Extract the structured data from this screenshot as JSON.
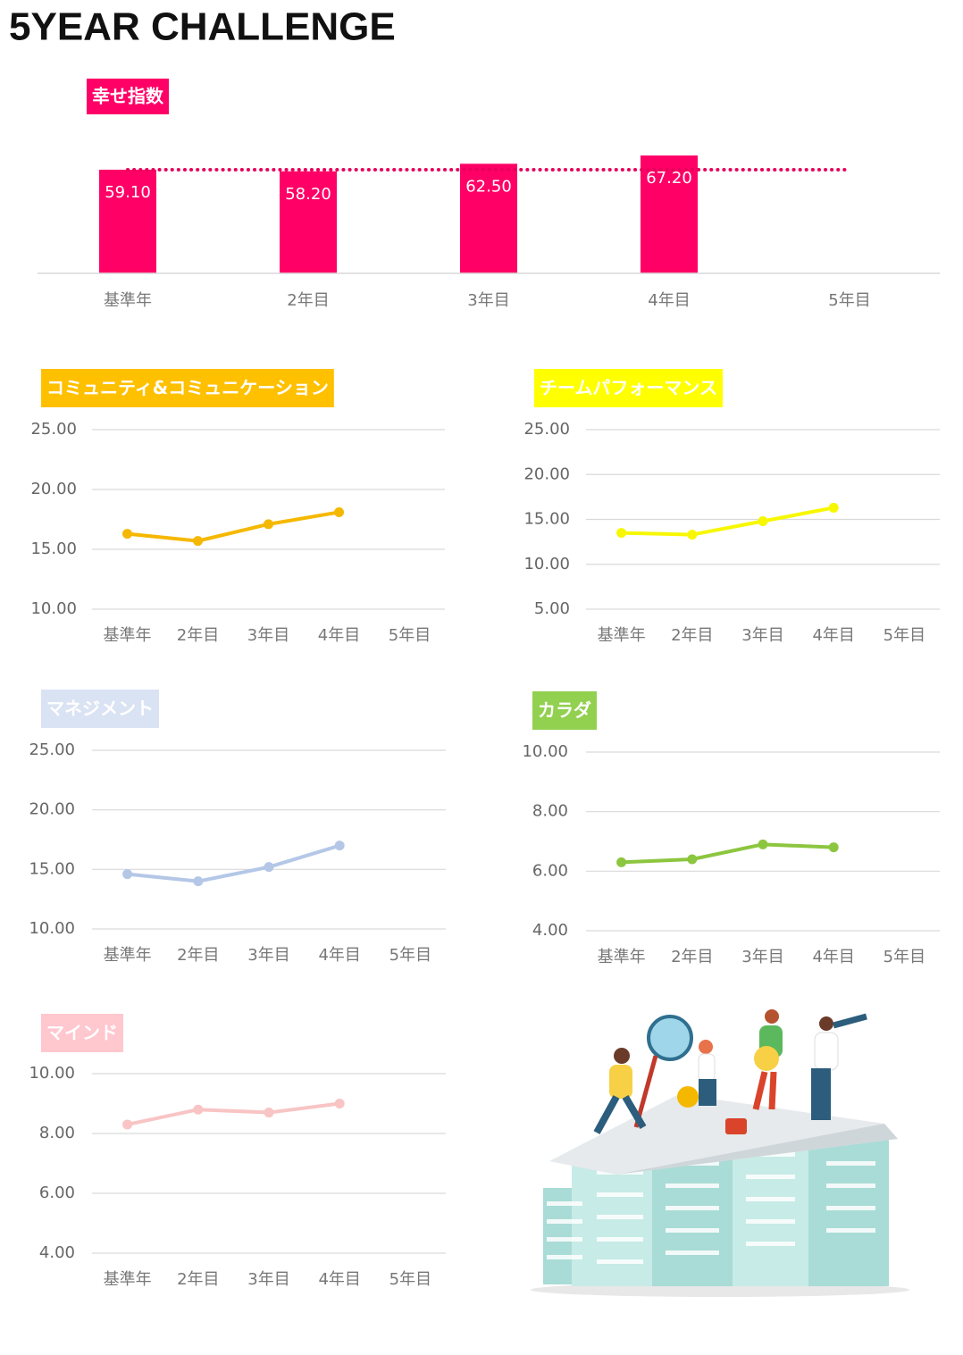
{
  "title": "5YEAR CHALLENGE",
  "chart_data": [
    {
      "type": "bar",
      "title": "幸せ指数",
      "title_background": "#ff0066",
      "categories": [
        "基準年",
        "2年目",
        "3年目",
        "4年目",
        "5年目"
      ],
      "values": [
        59.1,
        58.2,
        62.5,
        67.2,
        null
      ],
      "value_labels": [
        "59.10",
        "58.20",
        "62.50",
        "67.20",
        null
      ],
      "color": "#ff0066",
      "ylim": [
        0,
        80
      ],
      "reference_line": {
        "value": 59.1,
        "color": "#e6005c",
        "style": "dotted"
      }
    },
    {
      "type": "line",
      "title": "コミュニティ&コミュニケーション",
      "title_background": "#ffc000",
      "categories": [
        "基準年",
        "2年目",
        "3年目",
        "4年目",
        "5年目"
      ],
      "values": [
        16.3,
        15.7,
        17.1,
        18.1,
        null
      ],
      "color": "#f5b800",
      "ylim": [
        10,
        25
      ],
      "grid": true,
      "yticks": [
        {
          "value": 10,
          "label": "10.00"
        },
        {
          "value": 15,
          "label": "15.00"
        },
        {
          "value": 20,
          "label": "20.00"
        },
        {
          "value": 25,
          "label": "25.00"
        }
      ]
    },
    {
      "type": "line",
      "title": "チームパフォーマンス",
      "title_background": "#ffff00",
      "categories": [
        "基準年",
        "2年目",
        "3年目",
        "4年目",
        "5年目"
      ],
      "values": [
        13.5,
        13.3,
        14.8,
        16.3,
        null
      ],
      "color": "#f7f700",
      "ylim": [
        5,
        25
      ],
      "grid": true,
      "yticks": [
        {
          "value": 5,
          "label": "5.00"
        },
        {
          "value": 10,
          "label": "10.00"
        },
        {
          "value": 15,
          "label": "15.00"
        },
        {
          "value": 20,
          "label": "20.00"
        },
        {
          "value": 25,
          "label": "25.00"
        }
      ]
    },
    {
      "type": "line",
      "title": "マネジメント",
      "title_background": "#dae3f3",
      "categories": [
        "基準年",
        "2年目",
        "3年目",
        "4年目",
        "5年目"
      ],
      "values": [
        14.6,
        14.0,
        15.2,
        17.0,
        null
      ],
      "color": "#b4c7e7",
      "ylim": [
        10,
        25
      ],
      "grid": true,
      "yticks": [
        {
          "value": 10,
          "label": "10.00"
        },
        {
          "value": 15,
          "label": "15.00"
        },
        {
          "value": 20,
          "label": "20.00"
        },
        {
          "value": 25,
          "label": "25.00"
        }
      ]
    },
    {
      "type": "line",
      "title": "カラダ",
      "title_background": "#92d050",
      "categories": [
        "基準年",
        "2年目",
        "3年目",
        "4年目",
        "5年目"
      ],
      "values": [
        6.3,
        6.4,
        6.9,
        6.8,
        null
      ],
      "color": "#8cc63f",
      "ylim": [
        4,
        10
      ],
      "grid": true,
      "yticks": [
        {
          "value": 4,
          "label": "4.00"
        },
        {
          "value": 6,
          "label": "6.00"
        },
        {
          "value": 8,
          "label": "8.00"
        },
        {
          "value": 10,
          "label": "10.00"
        }
      ]
    },
    {
      "type": "line",
      "title": "マインド",
      "title_background": "#ffc7ce",
      "categories": [
        "基準年",
        "2年目",
        "3年目",
        "4年目",
        "5年目"
      ],
      "values": [
        8.3,
        8.8,
        8.7,
        9.0,
        null
      ],
      "color": "#f8c4c4",
      "ylim": [
        4,
        10
      ],
      "grid": true,
      "yticks": [
        {
          "value": 4,
          "label": "4.00"
        },
        {
          "value": 6,
          "label": "6.00"
        },
        {
          "value": 8,
          "label": "8.00"
        },
        {
          "value": 10,
          "label": "10.00"
        }
      ]
    }
  ]
}
